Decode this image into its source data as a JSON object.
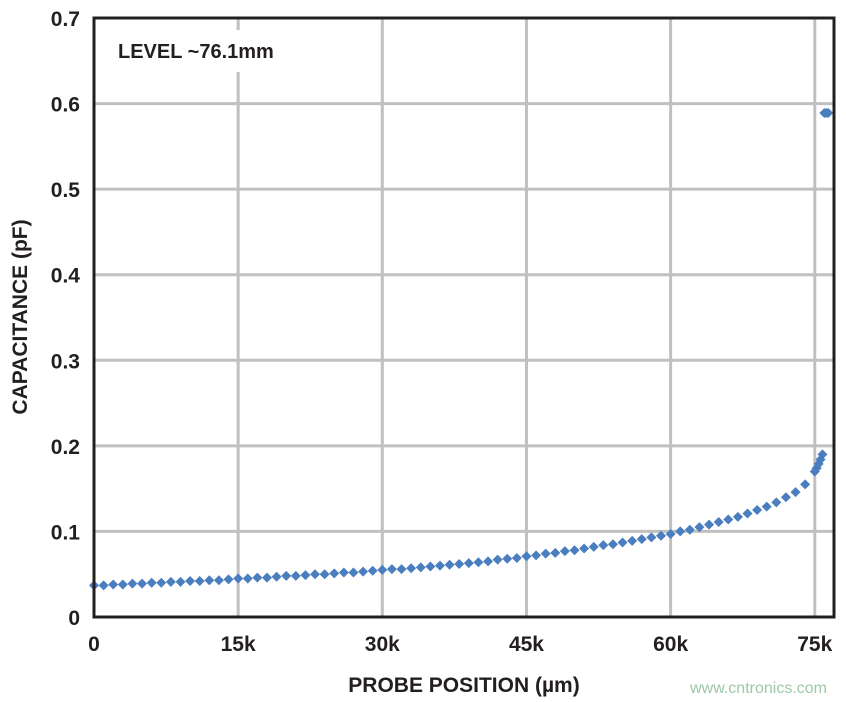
{
  "chart_data": {
    "type": "scatter",
    "title": "",
    "xlabel": "PROBE POSITION (µm)",
    "ylabel": "CAPACITANCE (pF)",
    "xlim": [
      0,
      77000
    ],
    "ylim": [
      0,
      0.7
    ],
    "xticks": [
      0,
      15000,
      30000,
      45000,
      60000,
      75000
    ],
    "xtick_labels": [
      "0",
      "15k",
      "30k",
      "45k",
      "60k",
      "75k"
    ],
    "yticks": [
      0,
      0.1,
      0.2,
      0.3,
      0.4,
      0.5,
      0.6,
      0.7
    ],
    "ytick_labels": [
      "0",
      "0.1",
      "0.2",
      "0.3",
      "0.4",
      "0.5",
      "0.6",
      "0.7"
    ],
    "grid": true,
    "annotation": "LEVEL ~76.1mm",
    "marker": "diamond",
    "colors": {
      "series": "#4a7ebf",
      "grid": "#c0c0c0",
      "axis": "#231f20"
    },
    "x": [
      0,
      1000,
      2000,
      3000,
      4000,
      5000,
      6000,
      7000,
      8000,
      9000,
      10000,
      11000,
      12000,
      13000,
      14000,
      15000,
      16000,
      17000,
      18000,
      19000,
      20000,
      21000,
      22000,
      23000,
      24000,
      25000,
      26000,
      27000,
      28000,
      29000,
      30000,
      31000,
      32000,
      33000,
      34000,
      35000,
      36000,
      37000,
      38000,
      39000,
      40000,
      41000,
      42000,
      43000,
      44000,
      45000,
      46000,
      47000,
      48000,
      49000,
      50000,
      51000,
      52000,
      53000,
      54000,
      55000,
      56000,
      57000,
      58000,
      59000,
      60000,
      61000,
      62000,
      63000,
      64000,
      65000,
      66000,
      67000,
      68000,
      69000,
      70000,
      71000,
      72000,
      73000,
      74000,
      75000,
      75200,
      75400,
      75600,
      75800,
      76000,
      76200,
      76400
    ],
    "y": [
      0.037,
      0.037,
      0.038,
      0.038,
      0.039,
      0.039,
      0.04,
      0.04,
      0.041,
      0.041,
      0.042,
      0.042,
      0.043,
      0.043,
      0.044,
      0.045,
      0.045,
      0.046,
      0.046,
      0.047,
      0.048,
      0.048,
      0.049,
      0.05,
      0.05,
      0.051,
      0.052,
      0.052,
      0.053,
      0.054,
      0.055,
      0.056,
      0.056,
      0.057,
      0.058,
      0.059,
      0.06,
      0.061,
      0.062,
      0.063,
      0.064,
      0.065,
      0.067,
      0.068,
      0.069,
      0.071,
      0.072,
      0.074,
      0.075,
      0.077,
      0.078,
      0.08,
      0.082,
      0.084,
      0.085,
      0.087,
      0.089,
      0.091,
      0.093,
      0.095,
      0.097,
      0.1,
      0.102,
      0.105,
      0.108,
      0.111,
      0.114,
      0.117,
      0.121,
      0.125,
      0.129,
      0.134,
      0.14,
      0.146,
      0.155,
      0.17,
      0.174,
      0.179,
      0.184,
      0.19,
      0.589,
      0.589,
      0.589
    ]
  },
  "watermark": "www.cntronics.com"
}
